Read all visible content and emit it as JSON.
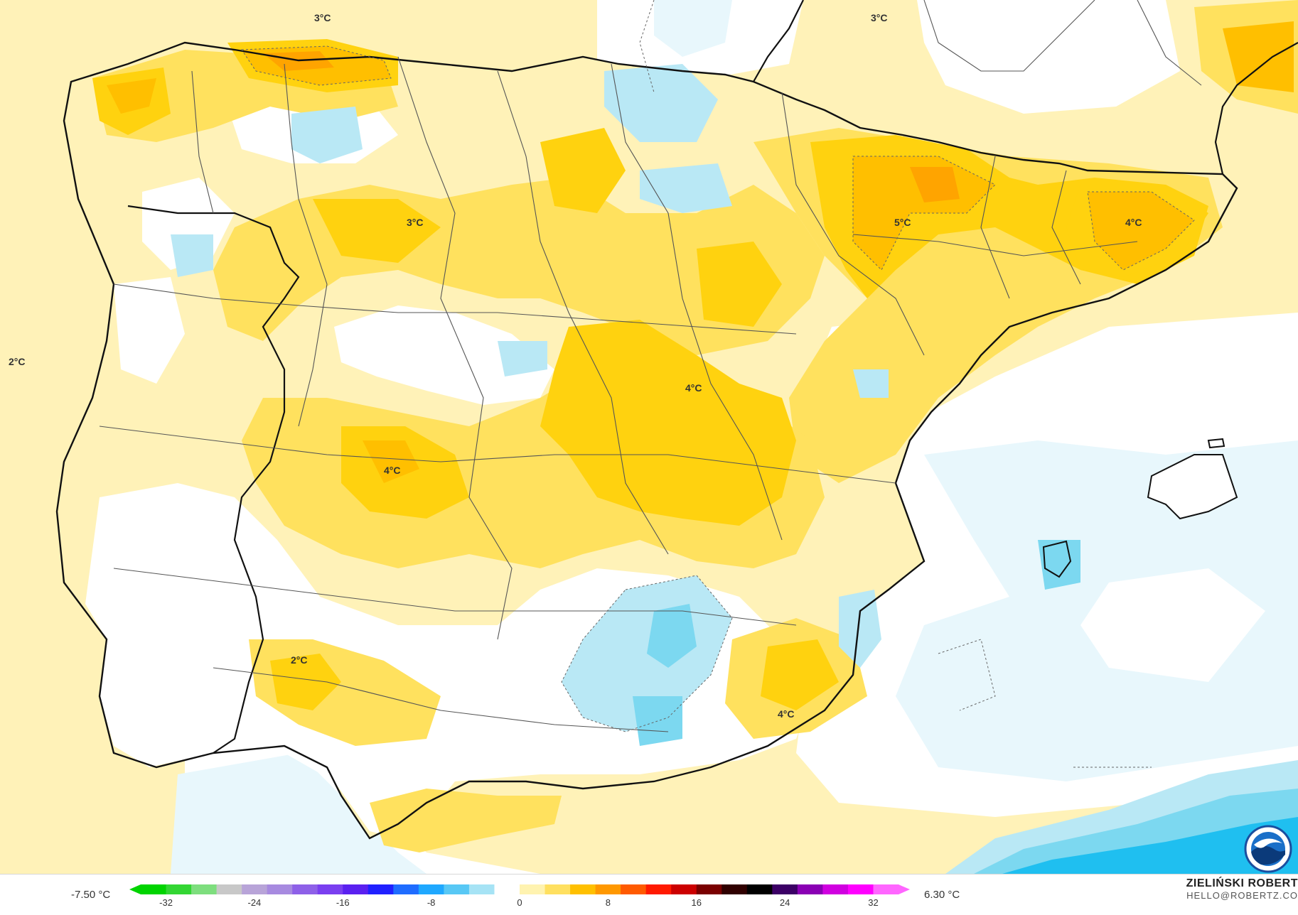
{
  "map": {
    "colors": {
      "sea_anomaly_default": "#fff2b8",
      "land_neutral": "#ffffff",
      "pale_yellow": "#fff2b8",
      "yellow": "#ffe15e",
      "gold": "#ffd20f",
      "amber": "#ffbf00",
      "orange": "#ffa400",
      "pale_blue": "#e8f7fc",
      "light_blue": "#b9e8f5",
      "blue": "#7cd8f0",
      "deep_blue": "#1fbff0",
      "border": "#111111",
      "province_line": "#555555"
    },
    "temperature_labels": [
      {
        "id": "lbl-a",
        "text": "3°C"
      },
      {
        "id": "lbl-b",
        "text": "3°C"
      },
      {
        "id": "lbl-c",
        "text": "3°C"
      },
      {
        "id": "lbl-d",
        "text": "2°C"
      },
      {
        "id": "lbl-e",
        "text": "5°C"
      },
      {
        "id": "lbl-f",
        "text": "4°C"
      },
      {
        "id": "lbl-g",
        "text": "4°C"
      },
      {
        "id": "lbl-h",
        "text": "4°C"
      },
      {
        "id": "lbl-i",
        "text": "2°C"
      },
      {
        "id": "lbl-j",
        "text": "4°C"
      }
    ],
    "logo_icon": "noaa-logo-icon"
  },
  "legend": {
    "min_label": "-7.50 °C",
    "max_label": "6.30 °C",
    "ticks": [
      "-32",
      "-24",
      "-16",
      "-8",
      "0",
      "8",
      "16",
      "24",
      "32"
    ],
    "colors": [
      "#00d400",
      "#33d633",
      "#7ede7e",
      "#c8c8c8",
      "#b8a4d8",
      "#a78ae0",
      "#8e60e8",
      "#7a3ff0",
      "#5a20f0",
      "#2020ff",
      "#1f6cff",
      "#1fa8ff",
      "#58c8f5",
      "#a6e3f5",
      "#ffffff",
      "#fff3b0",
      "#ffe060",
      "#ffc000",
      "#ff9800",
      "#ff5a00",
      "#ff1a00",
      "#cc0000",
      "#7a0000",
      "#300000",
      "#000000",
      "#3c0066",
      "#8a00b4",
      "#d000e0",
      "#ff00ff",
      "#ff66ff"
    ]
  },
  "credit": {
    "author": "ZIELIŃSKI ROBERT",
    "email": "HELLO@ROBERTZ.CO"
  }
}
